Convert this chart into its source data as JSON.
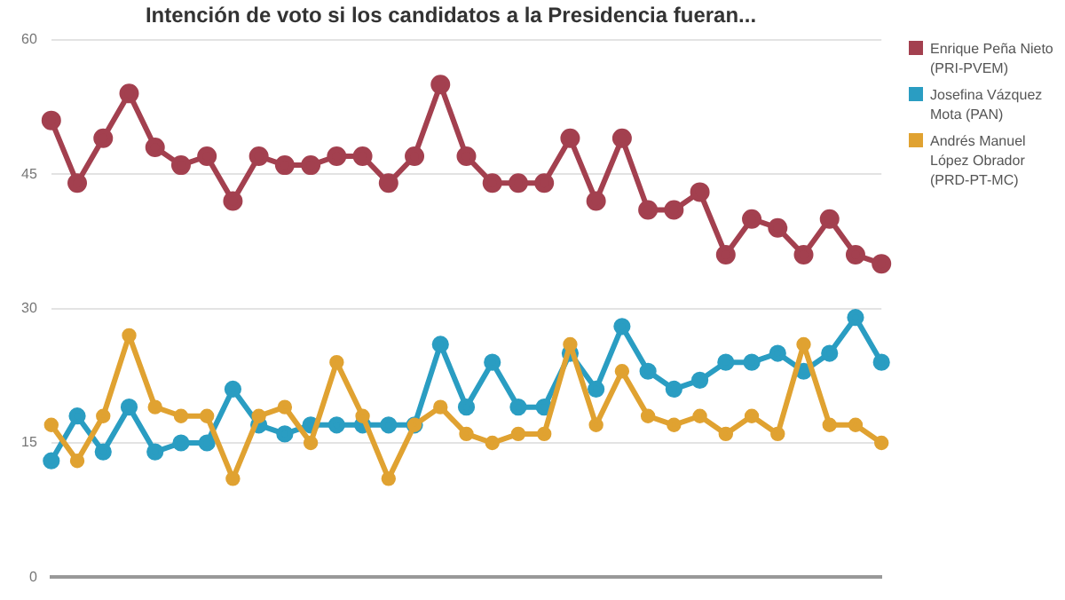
{
  "chart_data": {
    "type": "line",
    "title": "Intención de voto si los candidatos a la Presidencia fueran...",
    "categories": [
      null,
      null,
      null,
      null,
      null,
      null,
      null,
      null,
      null,
      null,
      null,
      null,
      null,
      null,
      null,
      null,
      null,
      null,
      null,
      null,
      null,
      null,
      null,
      null,
      null,
      null,
      null,
      null,
      null,
      null,
      null,
      null,
      null
    ],
    "series": [
      {
        "name": "Enrique Peña Nieto (PRI-PVEM)",
        "color": "#a3404f",
        "values": [
          51,
          44,
          49,
          54,
          48,
          46,
          47,
          42,
          47,
          46,
          46,
          47,
          47,
          44,
          47,
          55,
          47,
          44,
          44,
          44,
          49,
          42,
          49,
          41,
          41,
          43,
          36,
          40,
          39,
          36,
          40,
          36,
          35
        ]
      },
      {
        "name": "Josefina Vázquez Mota (PAN)",
        "color": "#2a9dc2",
        "values": [
          13,
          18,
          14,
          19,
          14,
          15,
          15,
          21,
          17,
          16,
          17,
          17,
          17,
          17,
          17,
          26,
          19,
          24,
          19,
          19,
          25,
          21,
          28,
          23,
          21,
          22,
          24,
          24,
          25,
          23,
          25,
          29,
          24
        ]
      },
      {
        "name": "Andrés Manuel López Obrador (PRD-PT-MC)",
        "color": "#e0a231",
        "values": [
          17,
          13,
          18,
          27,
          19,
          18,
          18,
          11,
          18,
          19,
          15,
          24,
          18,
          11,
          17,
          19,
          16,
          15,
          16,
          16,
          26,
          17,
          23,
          18,
          17,
          18,
          16,
          18,
          16,
          26,
          17,
          17,
          15
        ]
      }
    ],
    "ylim": [
      0,
      60
    ],
    "yticks": [
      0,
      15,
      30,
      45,
      60
    ],
    "grid": "y",
    "legend": "right",
    "marker": "circle",
    "line_style": "solid"
  }
}
